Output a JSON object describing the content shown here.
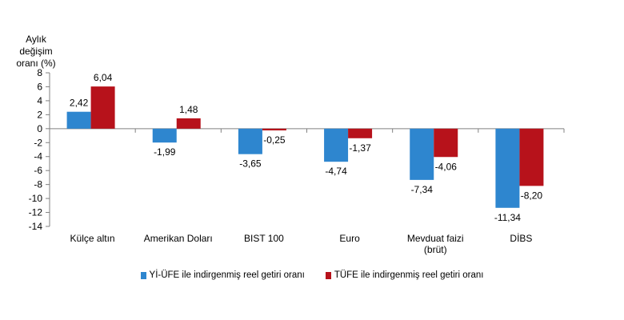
{
  "chart_data": {
    "type": "bar",
    "ylabel": "Aylık değişim oranı (%)",
    "ylabel_lines": [
      "Aylık değişim",
      "oranı (%)"
    ],
    "ylim": [
      -14,
      8
    ],
    "yticks": [
      8,
      6,
      4,
      2,
      0,
      -2,
      -4,
      -6,
      -8,
      -10,
      -12,
      -14
    ],
    "categories": [
      [
        "Külçe altın"
      ],
      [
        "Amerikan Doları"
      ],
      [
        "BIST 100"
      ],
      [
        "Euro"
      ],
      [
        "Mevduat faizi",
        "(brüt)"
      ],
      [
        "DİBS"
      ]
    ],
    "series": [
      {
        "name": "Yİ-ÜFE ile indirgenmiş reel getiri oranı",
        "color": "#2e86cf",
        "values": [
          2.42,
          -1.99,
          -3.65,
          -4.74,
          -7.34,
          -11.34
        ],
        "labels": [
          "2,42",
          "-1,99",
          "-3,65",
          "-4,74",
          "-7,34",
          "-11,34"
        ]
      },
      {
        "name": "TÜFE ile indirgenmiş reel getiri oranı",
        "color": "#b7121b",
        "values": [
          6.04,
          1.48,
          -0.25,
          -1.37,
          -4.06,
          -8.2
        ],
        "labels": [
          "6,04",
          "1,48",
          "-0,25",
          "-1,37",
          "-4,06",
          "-8,20"
        ]
      }
    ],
    "grid": false,
    "legend_position": "bottom"
  }
}
